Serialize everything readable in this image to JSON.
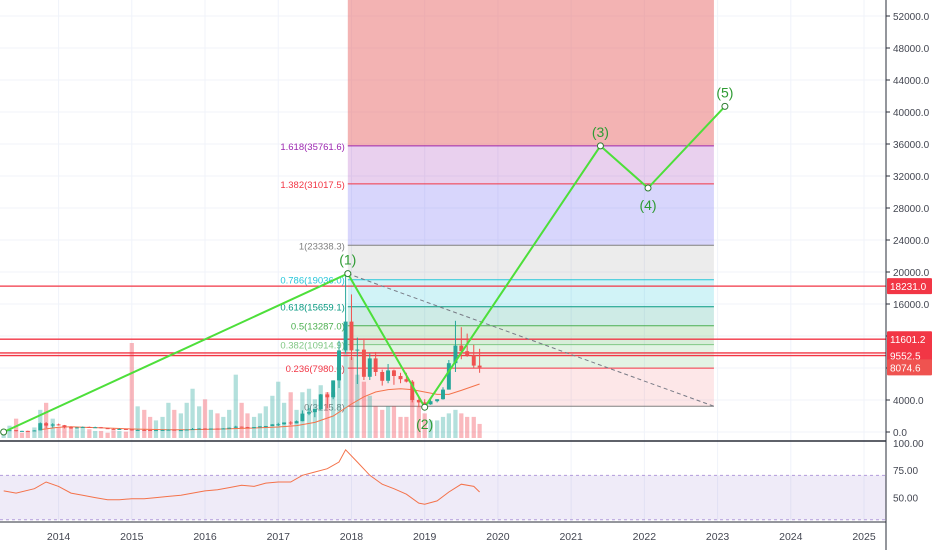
{
  "chart_data": {
    "type": "candlestick",
    "title": "",
    "price_axis": {
      "range": [
        -1000,
        54000
      ],
      "ticks": [
        52000,
        48000,
        44000,
        40000,
        36000,
        32000,
        28000,
        24000,
        20000,
        16000,
        12000,
        8000,
        4000,
        0
      ],
      "tick_labels": [
        "52000.0",
        "48000.0",
        "44000.0",
        "40000.0",
        "36000.0",
        "32000.0",
        "28000.0",
        "24000.0",
        "20000.0",
        "16000.0",
        "12000.0",
        "8000.0",
        "4000.0",
        "0.0"
      ]
    },
    "time_axis": {
      "range": [
        2013.2,
        2025.3
      ],
      "ticks": [
        2014,
        2015,
        2016,
        2017,
        2018,
        2019,
        2020,
        2021,
        2022,
        2023,
        2024,
        2025
      ],
      "tick_labels": [
        "2014",
        "2015",
        "2016",
        "2017",
        "2018",
        "2019",
        "2020",
        "2021",
        "2022",
        "2023",
        "2024",
        "2025"
      ]
    },
    "fib_levels": [
      {
        "ratio": "0",
        "price": 3215.8,
        "label": "0(3215.8)",
        "color": "#808080",
        "fill": "rgba(242,54,69,0.12)"
      },
      {
        "ratio": "0.236",
        "price": 7980.0,
        "label": "0.236(7980.0)",
        "color": "#f23645",
        "fill": "rgba(129,199,132,0.22)"
      },
      {
        "ratio": "0.382",
        "price": 10914.9,
        "label": "0.382(10914.9)",
        "color": "#81c784",
        "fill": "rgba(76,175,80,0.22)"
      },
      {
        "ratio": "0.5",
        "price": 13287.0,
        "label": "0.5(13287.0)",
        "color": "#4caf50",
        "fill": "rgba(8,153,129,0.20)"
      },
      {
        "ratio": "0.618",
        "price": 15659.1,
        "label": "0.618(15659.1)",
        "color": "#089981",
        "fill": "rgba(0,188,212,0.18)"
      },
      {
        "ratio": "0.786",
        "price": 19036.0,
        "label": "0.786(19036.0)",
        "color": "#26c6da",
        "fill": "rgba(128,128,128,0.15)"
      },
      {
        "ratio": "1",
        "price": 23338.3,
        "label": "1(23338.3)",
        "color": "#808080",
        "fill": "rgba(98,91,243,0.25)"
      },
      {
        "ratio": "1.382",
        "price": 31017.5,
        "label": "1.382(31017.5)",
        "color": "#f23645",
        "fill": "rgba(156,39,176,0.22)"
      },
      {
        "ratio": "1.618",
        "price": 35761.6,
        "label": "1.618(35761.6)",
        "color": "#9c27b0",
        "fill": "rgba(232,103,103,0.50)"
      }
    ],
    "fib_zone": {
      "x_start": 2017.95,
      "x_end": 2022.95,
      "top_price": 54000
    },
    "horizontal_lines": [
      {
        "price": 18231.0,
        "label": "18231.0"
      },
      {
        "price": 11601.2,
        "label": "11601.2"
      },
      {
        "price": 9881.0,
        "label": "9881.0"
      },
      {
        "price": 9552.5,
        "label": "9552.5"
      }
    ],
    "current_price": {
      "price": 8074.6,
      "label": "8074.6"
    },
    "wave_points": [
      {
        "label": "(1)",
        "x": 2017.95,
        "y": 19800
      },
      {
        "label": "(2)",
        "x": 2019.0,
        "y": 3100
      },
      {
        "label": "(3)",
        "x": 2021.4,
        "y": 35761
      },
      {
        "label": "(4)",
        "x": 2022.05,
        "y": 30500
      },
      {
        "label": "(5)",
        "x": 2023.1,
        "y": 40700
      }
    ],
    "trend_start": {
      "x": 2013.25,
      "y": 0
    },
    "candles": [
      [
        2013.25,
        150,
        200,
        90,
        180
      ],
      [
        2013.33,
        180,
        270,
        160,
        230
      ],
      [
        2013.42,
        230,
        240,
        80,
        120
      ],
      [
        2013.5,
        120,
        150,
        70,
        140
      ],
      [
        2013.58,
        140,
        160,
        90,
        130
      ],
      [
        2013.67,
        130,
        210,
        120,
        200
      ],
      [
        2013.75,
        200,
        1200,
        190,
        1100
      ],
      [
        2013.83,
        1100,
        1250,
        500,
        800
      ],
      [
        2013.92,
        800,
        1100,
        550,
        950
      ],
      [
        2014.0,
        950,
        1050,
        800,
        850
      ],
      [
        2014.08,
        850,
        880,
        450,
        600
      ],
      [
        2014.17,
        600,
        700,
        400,
        450
      ],
      [
        2014.25,
        450,
        600,
        420,
        560
      ],
      [
        2014.33,
        560,
        680,
        520,
        640
      ],
      [
        2014.42,
        640,
        670,
        560,
        590
      ],
      [
        2014.5,
        590,
        660,
        560,
        600
      ],
      [
        2014.58,
        600,
        630,
        460,
        480
      ],
      [
        2014.67,
        480,
        500,
        380,
        390
      ],
      [
        2014.75,
        390,
        420,
        300,
        330
      ],
      [
        2014.83,
        330,
        460,
        320,
        380
      ],
      [
        2014.92,
        380,
        390,
        300,
        320
      ],
      [
        2015.0,
        320,
        330,
        170,
        230
      ],
      [
        2015.08,
        230,
        290,
        210,
        260
      ],
      [
        2015.17,
        260,
        300,
        230,
        250
      ],
      [
        2015.25,
        250,
        260,
        210,
        230
      ],
      [
        2015.33,
        230,
        250,
        220,
        240
      ],
      [
        2015.42,
        240,
        270,
        230,
        260
      ],
      [
        2015.5,
        260,
        320,
        250,
        290
      ],
      [
        2015.58,
        290,
        290,
        200,
        230
      ],
      [
        2015.67,
        230,
        250,
        220,
        240
      ],
      [
        2015.75,
        240,
        330,
        230,
        310
      ],
      [
        2015.83,
        310,
        500,
        310,
        380
      ],
      [
        2015.92,
        380,
        470,
        350,
        430
      ],
      [
        2016.0,
        430,
        470,
        350,
        370
      ],
      [
        2016.08,
        370,
        440,
        360,
        430
      ],
      [
        2016.17,
        430,
        440,
        400,
        415
      ],
      [
        2016.25,
        415,
        470,
        410,
        450
      ],
      [
        2016.33,
        450,
        550,
        440,
        530
      ],
      [
        2016.42,
        530,
        780,
        520,
        670
      ],
      [
        2016.5,
        670,
        680,
        580,
        620
      ],
      [
        2016.58,
        620,
        640,
        560,
        575
      ],
      [
        2016.67,
        575,
        620,
        570,
        610
      ],
      [
        2016.75,
        610,
        720,
        600,
        700
      ],
      [
        2016.83,
        700,
        760,
        690,
        745
      ],
      [
        2016.92,
        745,
        970,
        740,
        960
      ],
      [
        2017.0,
        960,
        1150,
        750,
        965
      ],
      [
        2017.08,
        965,
        1200,
        920,
        1190
      ],
      [
        2017.17,
        1190,
        1350,
        890,
        1080
      ],
      [
        2017.25,
        1080,
        1440,
        1070,
        1350
      ],
      [
        2017.33,
        1350,
        2700,
        1340,
        2300
      ],
      [
        2017.42,
        2300,
        3000,
        2100,
        2480
      ],
      [
        2017.5,
        2480,
        2900,
        1850,
        2870
      ],
      [
        2017.58,
        2870,
        4750,
        2700,
        4700
      ],
      [
        2017.67,
        4700,
        4980,
        2950,
        4340
      ],
      [
        2017.75,
        4340,
        6450,
        4100,
        6450
      ],
      [
        2017.83,
        6450,
        11400,
        5500,
        10200
      ],
      [
        2017.92,
        10200,
        19800,
        9800,
        13800
      ],
      [
        2018.0,
        13800,
        17200,
        9000,
        10200
      ],
      [
        2018.08,
        10200,
        11800,
        6000,
        10300
      ],
      [
        2018.17,
        10300,
        11700,
        6500,
        6900
      ],
      [
        2018.25,
        6900,
        9800,
        6500,
        9200
      ],
      [
        2018.33,
        9200,
        10000,
        7000,
        7500
      ],
      [
        2018.42,
        7500,
        7800,
        5800,
        6400
      ],
      [
        2018.5,
        6400,
        8500,
        6100,
        7700
      ],
      [
        2018.58,
        7700,
        7800,
        5900,
        7000
      ],
      [
        2018.67,
        7000,
        7400,
        6100,
        6600
      ],
      [
        2018.75,
        6600,
        7400,
        6200,
        6300
      ],
      [
        2018.83,
        6300,
        6500,
        3700,
        4000
      ],
      [
        2018.92,
        4000,
        4300,
        3100,
        3700
      ],
      [
        2019.0,
        3700,
        4100,
        3400,
        3450
      ],
      [
        2019.08,
        3450,
        4200,
        3400,
        3850
      ],
      [
        2019.17,
        3850,
        4100,
        3700,
        4100
      ],
      [
        2019.25,
        4100,
        5600,
        4050,
        5300
      ],
      [
        2019.33,
        5300,
        9000,
        5300,
        8600
      ],
      [
        2019.42,
        8600,
        13900,
        7500,
        10800
      ],
      [
        2019.5,
        10800,
        13100,
        9100,
        10100
      ],
      [
        2019.58,
        10100,
        12300,
        9400,
        9600
      ],
      [
        2019.67,
        9600,
        10900,
        8000,
        8300
      ],
      [
        2019.75,
        8300,
        10400,
        7400,
        8074
      ]
    ],
    "volumes": [
      [
        2013.25,
        0.18,
        0
      ],
      [
        2013.33,
        0.35,
        0
      ],
      [
        2013.42,
        0.55,
        1
      ],
      [
        2013.5,
        0.15,
        1
      ],
      [
        2013.58,
        0.2,
        1
      ],
      [
        2013.67,
        0.3,
        0
      ],
      [
        2013.75,
        0.8,
        0
      ],
      [
        2013.83,
        1.0,
        1
      ],
      [
        2013.92,
        0.55,
        0
      ],
      [
        2014.0,
        0.3,
        1
      ],
      [
        2014.08,
        0.35,
        1
      ],
      [
        2014.17,
        0.3,
        1
      ],
      [
        2014.25,
        0.25,
        0
      ],
      [
        2014.33,
        0.3,
        0
      ],
      [
        2014.42,
        0.25,
        1
      ],
      [
        2014.5,
        0.2,
        0
      ],
      [
        2014.58,
        0.2,
        1
      ],
      [
        2014.67,
        0.15,
        1
      ],
      [
        2014.75,
        0.22,
        1
      ],
      [
        2014.83,
        0.2,
        0
      ],
      [
        2014.92,
        0.18,
        1
      ],
      [
        2015.0,
        2.7,
        1
      ],
      [
        2015.08,
        0.9,
        0
      ],
      [
        2015.17,
        0.8,
        1
      ],
      [
        2015.25,
        0.6,
        1
      ],
      [
        2015.33,
        0.5,
        0
      ],
      [
        2015.42,
        0.6,
        0
      ],
      [
        2015.5,
        1.0,
        0
      ],
      [
        2015.58,
        0.8,
        1
      ],
      [
        2015.67,
        0.7,
        0
      ],
      [
        2015.75,
        1.0,
        0
      ],
      [
        2015.83,
        1.4,
        0
      ],
      [
        2015.92,
        0.9,
        0
      ],
      [
        2016.0,
        1.1,
        1
      ],
      [
        2016.08,
        0.8,
        0
      ],
      [
        2016.17,
        0.7,
        1
      ],
      [
        2016.25,
        0.6,
        0
      ],
      [
        2016.33,
        0.8,
        0
      ],
      [
        2016.42,
        1.8,
        0
      ],
      [
        2016.5,
        1.0,
        1
      ],
      [
        2016.58,
        0.7,
        1
      ],
      [
        2016.67,
        0.6,
        0
      ],
      [
        2016.75,
        0.7,
        0
      ],
      [
        2016.83,
        0.9,
        0
      ],
      [
        2016.92,
        1.2,
        0
      ],
      [
        2017.0,
        1.6,
        0
      ],
      [
        2017.08,
        1.0,
        0
      ],
      [
        2017.17,
        1.3,
        1
      ],
      [
        2017.25,
        0.8,
        0
      ],
      [
        2017.33,
        1.3,
        0
      ],
      [
        2017.42,
        1.4,
        0
      ],
      [
        2017.5,
        1.1,
        0
      ],
      [
        2017.58,
        1.5,
        0
      ],
      [
        2017.67,
        1.3,
        1
      ],
      [
        2017.75,
        1.3,
        0
      ],
      [
        2017.83,
        1.9,
        0
      ],
      [
        2017.92,
        2.5,
        0
      ],
      [
        2018.0,
        2.3,
        1
      ],
      [
        2018.08,
        1.8,
        0
      ],
      [
        2018.17,
        1.6,
        1
      ],
      [
        2018.25,
        1.2,
        0
      ],
      [
        2018.33,
        0.9,
        1
      ],
      [
        2018.42,
        0.8,
        1
      ],
      [
        2018.5,
        0.9,
        0
      ],
      [
        2018.58,
        0.9,
        1
      ],
      [
        2018.67,
        0.6,
        1
      ],
      [
        2018.75,
        0.6,
        1
      ],
      [
        2018.83,
        1.2,
        1
      ],
      [
        2018.92,
        0.9,
        1
      ],
      [
        2019.0,
        0.7,
        1
      ],
      [
        2019.08,
        0.5,
        0
      ],
      [
        2019.17,
        0.5,
        0
      ],
      [
        2019.25,
        0.6,
        0
      ],
      [
        2019.33,
        0.7,
        0
      ],
      [
        2019.42,
        0.8,
        0
      ],
      [
        2019.5,
        0.7,
        1
      ],
      [
        2019.58,
        0.6,
        1
      ],
      [
        2019.67,
        0.6,
        1
      ],
      [
        2019.75,
        0.4,
        1
      ]
    ],
    "moving_average": [
      [
        2013.75,
        300
      ],
      [
        2014.0,
        600
      ],
      [
        2014.17,
        650
      ],
      [
        2014.33,
        600
      ],
      [
        2014.5,
        550
      ],
      [
        2014.75,
        480
      ],
      [
        2015.0,
        380
      ],
      [
        2015.25,
        320
      ],
      [
        2015.5,
        290
      ],
      [
        2015.75,
        290
      ],
      [
        2016.0,
        320
      ],
      [
        2016.25,
        380
      ],
      [
        2016.5,
        450
      ],
      [
        2016.75,
        520
      ],
      [
        2017.0,
        620
      ],
      [
        2017.25,
        800
      ],
      [
        2017.5,
        1200
      ],
      [
        2017.75,
        2000
      ],
      [
        2018.0,
        3500
      ],
      [
        2018.17,
        4400
      ],
      [
        2018.33,
        5000
      ],
      [
        2018.5,
        5300
      ],
      [
        2018.67,
        5400
      ],
      [
        2018.83,
        5300
      ],
      [
        2019.0,
        5000
      ],
      [
        2019.17,
        4700
      ],
      [
        2019.33,
        4700
      ],
      [
        2019.5,
        5200
      ],
      [
        2019.75,
        6000
      ]
    ],
    "trend_dashed_line": [
      [
        2013.25,
        0
      ],
      [
        2017.95,
        19800
      ]
    ],
    "decline_dashed_line": [
      [
        2017.95,
        19800
      ],
      [
        2022.95,
        3215.8
      ]
    ],
    "rsi": {
      "ticks": [
        75.0,
        50.0
      ],
      "tick_labels": [
        "75.00",
        "50.00"
      ],
      "top_label": "100.00",
      "band": [
        30,
        70
      ],
      "range": [
        28,
        100
      ],
      "values": [
        [
          2013.25,
          56
        ],
        [
          2013.42,
          54
        ],
        [
          2013.67,
          58
        ],
        [
          2013.83,
          64
        ],
        [
          2014.0,
          60
        ],
        [
          2014.17,
          54
        ],
        [
          2014.33,
          52
        ],
        [
          2014.5,
          50
        ],
        [
          2014.67,
          48
        ],
        [
          2014.83,
          48
        ],
        [
          2015.0,
          49
        ],
        [
          2015.17,
          49
        ],
        [
          2015.33,
          50
        ],
        [
          2015.5,
          51
        ],
        [
          2015.67,
          52
        ],
        [
          2015.83,
          54
        ],
        [
          2016.0,
          56
        ],
        [
          2016.17,
          57
        ],
        [
          2016.33,
          59
        ],
        [
          2016.5,
          61
        ],
        [
          2016.67,
          60
        ],
        [
          2016.83,
          63
        ],
        [
          2017.0,
          64
        ],
        [
          2017.17,
          64
        ],
        [
          2017.33,
          70
        ],
        [
          2017.5,
          73
        ],
        [
          2017.67,
          76
        ],
        [
          2017.83,
          82
        ],
        [
          2017.92,
          93
        ],
        [
          2018.08,
          82
        ],
        [
          2018.25,
          70
        ],
        [
          2018.42,
          62
        ],
        [
          2018.58,
          58
        ],
        [
          2018.75,
          53
        ],
        [
          2018.92,
          45
        ],
        [
          2019.0,
          44
        ],
        [
          2019.17,
          47
        ],
        [
          2019.33,
          55
        ],
        [
          2019.5,
          62
        ],
        [
          2019.67,
          60
        ],
        [
          2019.75,
          55
        ]
      ]
    }
  }
}
